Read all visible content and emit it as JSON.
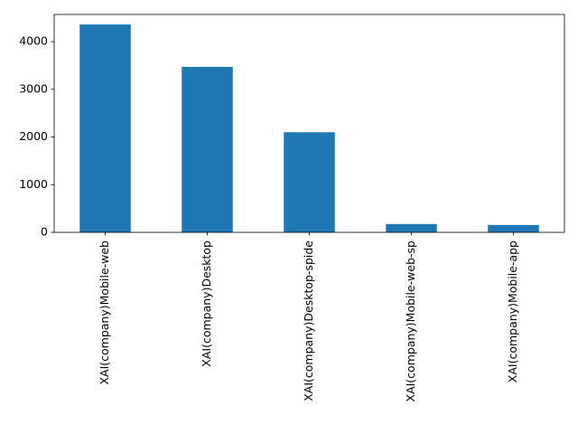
{
  "chart_data": {
    "type": "bar",
    "categories": [
      "XAI(company)Mobile-web",
      "XAI(company)Desktop",
      "XAI(company)Desktop-spide",
      "XAI(company)Mobile-web-sp",
      "XAI(company)Mobile-app"
    ],
    "values": [
      4360,
      3470,
      2100,
      175,
      155
    ],
    "color": "#1f77b4",
    "ylim": [
      0,
      4570
    ],
    "yticks": [
      0,
      1000,
      2000,
      3000,
      4000
    ],
    "grid": false
  }
}
